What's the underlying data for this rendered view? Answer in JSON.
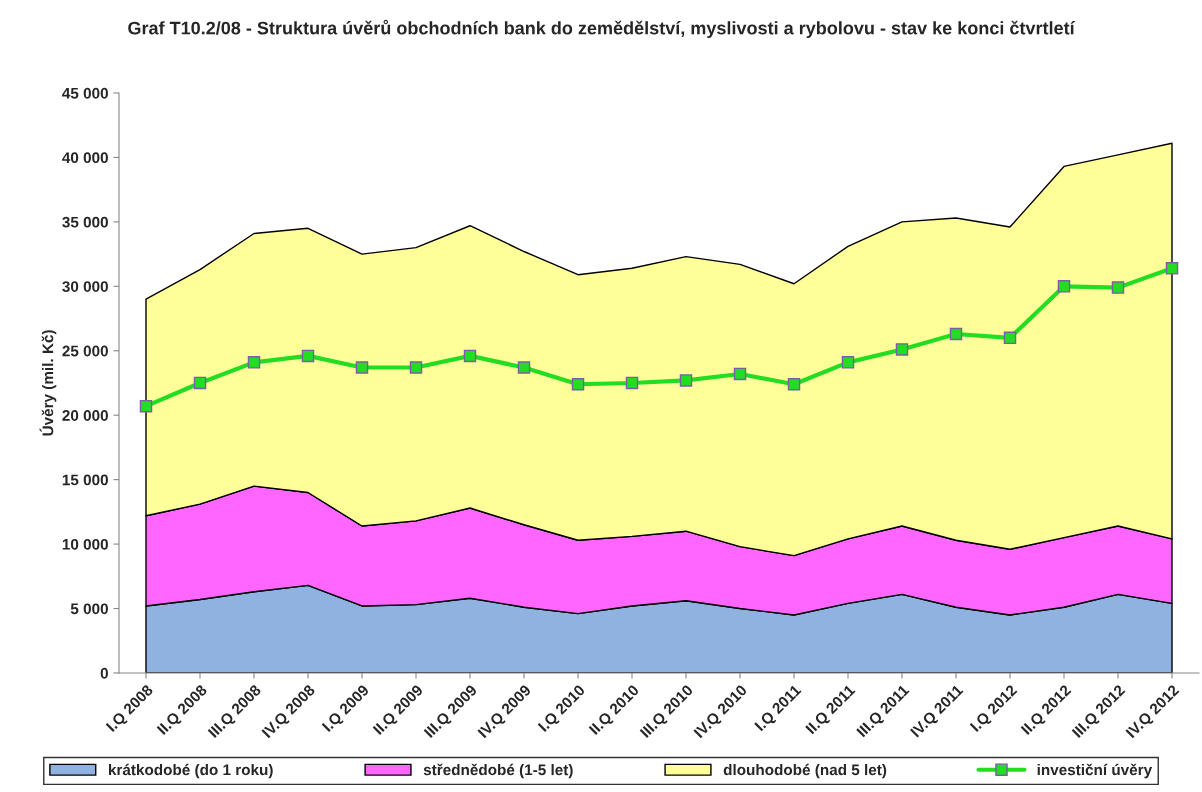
{
  "chart_data": {
    "type": "area",
    "stacked": true,
    "title": "Graf T10.2/08 - Struktura úvěrů obchodních bank do zemědělství, myslivosti a rybolovu - stav ke konci čtvrtletí",
    "ylabel": "Úvěry (mil. Kč)",
    "categories": [
      "I.Q 2008",
      "II.Q 2008",
      "III.Q 2008",
      "IV.Q 2008",
      "I.Q 2009",
      "II.Q 2009",
      "III.Q 2009",
      "IV.Q 2009",
      "I.Q 2010",
      "II.Q 2010",
      "III.Q 2010",
      "IV.Q 2010",
      "I.Q 2011",
      "II.Q 2011",
      "III.Q 2011",
      "IV.Q 2011",
      "I.Q 2012",
      "II.Q 2012",
      "III.Q 2012",
      "IV.Q 2012"
    ],
    "series": [
      {
        "name": "krátkodobé (do 1 roku)",
        "color": "#8fb2e0",
        "values": [
          5200,
          5700,
          6300,
          6800,
          5200,
          5300,
          5800,
          5100,
          4600,
          5200,
          5600,
          5000,
          4500,
          5400,
          6100,
          5100,
          4500,
          5100,
          6100,
          5400
        ]
      },
      {
        "name": "střednědobé (1-5 let)",
        "color": "#ff66ff",
        "values": [
          7000,
          7400,
          8200,
          7200,
          6200,
          6500,
          7000,
          6400,
          5700,
          5400,
          5400,
          4800,
          4600,
          5000,
          5300,
          5200,
          5100,
          5400,
          5300,
          5000
        ]
      },
      {
        "name": "dlouhodobé (nad 5 let)",
        "color": "#ffff99",
        "values": [
          16800,
          18200,
          19600,
          20500,
          21100,
          21200,
          21900,
          21200,
          20600,
          20800,
          21300,
          21900,
          21100,
          22700,
          23600,
          25000,
          25000,
          28800,
          28800,
          30700
        ]
      },
      {
        "name": "investiční úvěry",
        "type": "line",
        "color": "#22dd22",
        "marker": "square",
        "values": [
          20700,
          22500,
          24100,
          24600,
          23700,
          23700,
          24600,
          23700,
          22400,
          22500,
          22700,
          23200,
          22400,
          24100,
          25100,
          26300,
          26000,
          30000,
          29900,
          31400
        ]
      }
    ],
    "ylim": [
      0,
      45000
    ],
    "yticks": [
      0,
      {
        "value": 5000,
        "label": "5 000"
      },
      {
        "value": 10000,
        "label": "10 000"
      },
      {
        "value": 15000,
        "label": "15 000"
      },
      {
        "value": 20000,
        "label": "20 000"
      },
      {
        "value": 25000,
        "label": "25 000"
      },
      {
        "value": 30000,
        "label": "30 000"
      },
      {
        "value": 35000,
        "label": "35 000"
      },
      {
        "value": 40000,
        "label": "40 000"
      },
      {
        "value": 45000,
        "label": "45 000"
      }
    ],
    "legend": "bottom"
  }
}
